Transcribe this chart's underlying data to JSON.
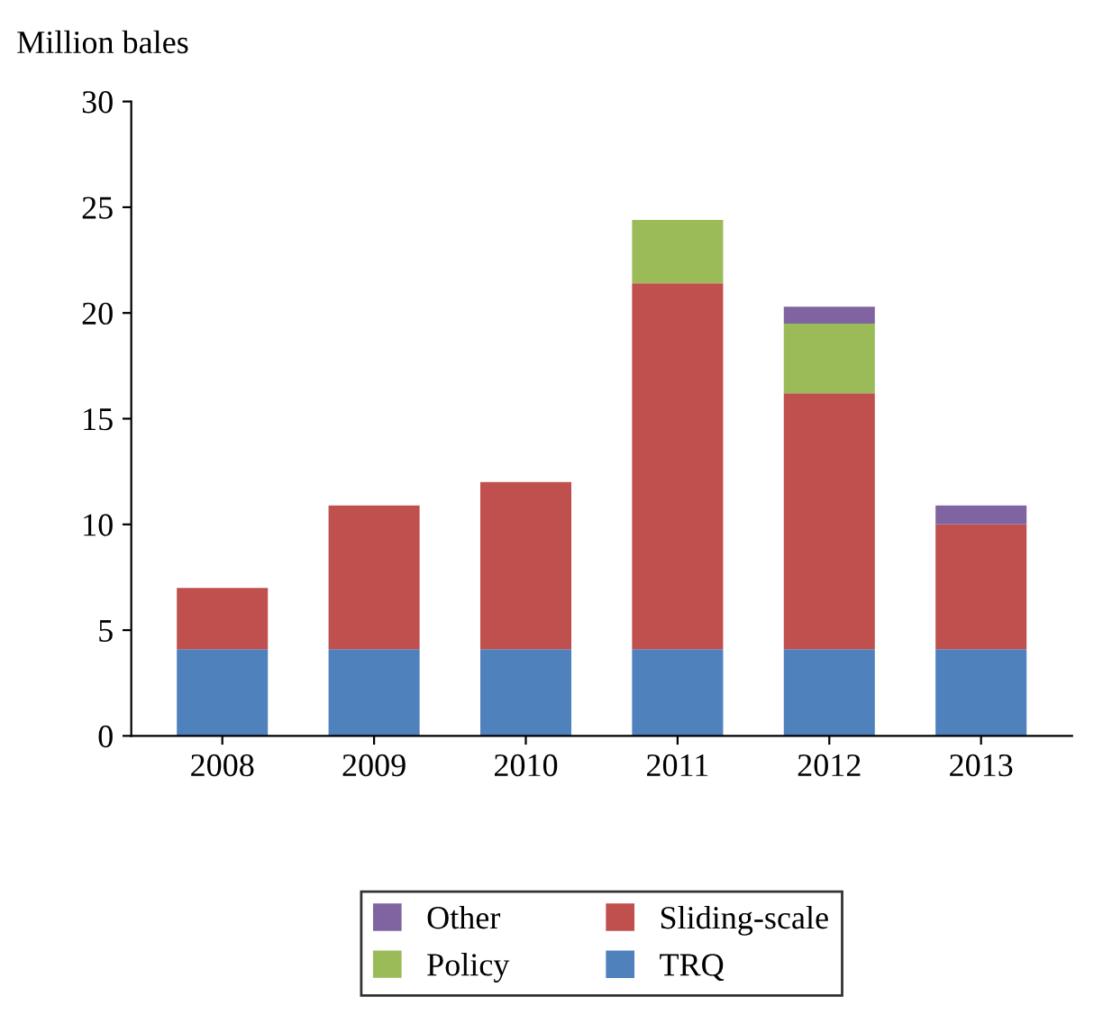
{
  "chart_data": {
    "type": "bar",
    "stacked": true,
    "ylabel": "Million bales",
    "categories": [
      "2008",
      "2009",
      "2010",
      "2011",
      "2012",
      "2013"
    ],
    "series": [
      {
        "name": "TRQ",
        "color": "#4f81bd",
        "values": [
          4.1,
          4.1,
          4.1,
          4.1,
          4.1,
          4.1
        ]
      },
      {
        "name": "Sliding-scale",
        "color": "#c0504d",
        "values": [
          2.9,
          6.8,
          7.9,
          17.3,
          12.1,
          5.9
        ]
      },
      {
        "name": "Policy",
        "color": "#9bbb59",
        "values": [
          0,
          0,
          0,
          3.0,
          3.3,
          0
        ]
      },
      {
        "name": "Other",
        "color": "#8064a2",
        "values": [
          0,
          0,
          0,
          0,
          0.8,
          0.9
        ]
      }
    ],
    "ylim": [
      0,
      30
    ],
    "yticks": [
      0,
      5,
      10,
      15,
      20,
      25,
      30
    ],
    "grid": false,
    "legend": "bottom"
  }
}
